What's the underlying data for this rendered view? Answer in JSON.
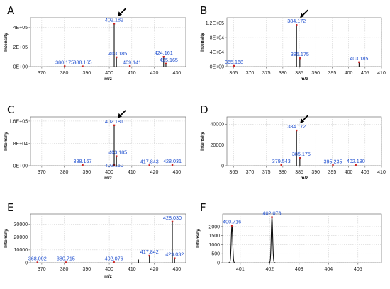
{
  "colors": {
    "peak": "#111111",
    "grid": "#c9c9c9",
    "axis": "#555555",
    "peak_label": "#1f4fcf",
    "marker": "#cc2222"
  },
  "chart_data": [
    {
      "panel": "A",
      "type": "bar",
      "xlabel": "m/z",
      "ylabel": "Intensity",
      "xlim": [
        365,
        434
      ],
      "ylim": [
        0,
        500000
      ],
      "xticks": [
        370,
        380,
        390,
        400,
        410,
        420,
        430
      ],
      "yticks": [
        0,
        200000,
        400000
      ],
      "ytick_labels": [
        "0E+00",
        "2E+05",
        "4E+05"
      ],
      "arrow_at": 402.182,
      "peaks": [
        {
          "mz": 380.175,
          "i": 4000,
          "label": "380.175"
        },
        {
          "mz": 388.165,
          "i": 3000,
          "label": "388.165"
        },
        {
          "mz": 402.182,
          "i": 440000,
          "label": "402.182"
        },
        {
          "mz": 403.185,
          "i": 95000,
          "label": "403.185"
        },
        {
          "mz": 409.141,
          "i": 5000,
          "label": "409.141"
        },
        {
          "mz": 424.161,
          "i": 100000,
          "label": "424.161"
        },
        {
          "mz": 425.165,
          "i": 30000,
          "label": "425.165"
        }
      ]
    },
    {
      "panel": "B",
      "type": "bar",
      "xlabel": "m/z",
      "ylabel": "Intensity",
      "xlim": [
        363,
        410
      ],
      "ylim": [
        0,
        135000
      ],
      "xticks": [
        365,
        370,
        375,
        380,
        385,
        390,
        395,
        400,
        405,
        410
      ],
      "yticks": [
        0,
        40000,
        80000,
        120000
      ],
      "ytick_labels": [
        "0E+00",
        "4E+04",
        "8E+04",
        "1.2E+05"
      ],
      "arrow_at": 384.172,
      "peaks": [
        {
          "mz": 365.168,
          "i": 2000,
          "label": "365.168"
        },
        {
          "mz": 384.172,
          "i": 115000,
          "label": "384.172"
        },
        {
          "mz": 385.175,
          "i": 23000,
          "label": "385.175"
        },
        {
          "mz": 403.185,
          "i": 12000,
          "label": "403.185"
        }
      ]
    },
    {
      "panel": "C",
      "type": "bar",
      "xlabel": "m/z",
      "ylabel": "Intensity",
      "xlim": [
        365,
        434
      ],
      "ylim": [
        0,
        175000
      ],
      "xticks": [
        370,
        380,
        390,
        400,
        410,
        420,
        430
      ],
      "yticks": [
        0,
        80000,
        160000
      ],
      "ytick_labels": [
        "0E+00",
        "8E+04",
        "1.6E+05"
      ],
      "arrow_at": 402.181,
      "peaks": [
        {
          "mz": 388.167,
          "i": 2000,
          "label": "388.167"
        },
        {
          "mz": 402.16,
          "i": 2500,
          "label": "402.160"
        },
        {
          "mz": 402.181,
          "i": 145000,
          "label": "402.181"
        },
        {
          "mz": 403.185,
          "i": 34000,
          "label": "403.185"
        },
        {
          "mz": 417.843,
          "i": 1500,
          "label": "417.843"
        },
        {
          "mz": 428.031,
          "i": 2000,
          "label": "428.031"
        }
      ]
    },
    {
      "panel": "D",
      "type": "bar",
      "xlabel": "m/z",
      "ylabel": "Intensity",
      "xlim": [
        363,
        410
      ],
      "ylim": [
        0,
        47000
      ],
      "xticks": [
        365,
        370,
        375,
        380,
        385,
        390,
        395,
        400,
        405,
        410
      ],
      "yticks": [
        0,
        20000,
        40000
      ],
      "ytick_labels": [
        "0",
        "20000",
        "40000"
      ],
      "arrow_at": 384.172,
      "peaks": [
        {
          "mz": 379.543,
          "i": 600,
          "label": "379.543"
        },
        {
          "mz": 384.172,
          "i": 34000,
          "label": "384.172"
        },
        {
          "mz": 385.175,
          "i": 7500,
          "label": "385.175"
        },
        {
          "mz": 395.235,
          "i": 500,
          "label": "395.235"
        },
        {
          "mz": 402.18,
          "i": 600,
          "label": "402.180"
        }
      ]
    },
    {
      "panel": "E",
      "type": "bar",
      "xlabel": "m/z",
      "ylabel": "Intensity",
      "xlim": [
        365,
        434
      ],
      "ylim": [
        0,
        38000
      ],
      "xticks": [
        370,
        380,
        390,
        400,
        410,
        420,
        430
      ],
      "yticks": [
        0,
        10000,
        20000,
        30000
      ],
      "ytick_labels": [
        "0",
        "10000",
        "20000",
        "30000"
      ],
      "arrow_at": null,
      "peaks": [
        {
          "mz": 368.092,
          "i": 300,
          "label": "368.092"
        },
        {
          "mz": 380.715,
          "i": 300,
          "label": "380.715"
        },
        {
          "mz": 402.076,
          "i": 400,
          "label": "402.076"
        },
        {
          "mz": 413.0,
          "i": 2500,
          "label": ""
        },
        {
          "mz": 417.842,
          "i": 5500,
          "label": "417.842"
        },
        {
          "mz": 428.03,
          "i": 32000,
          "label": "428.030"
        },
        {
          "mz": 429.032,
          "i": 3500,
          "label": "429.032"
        }
      ]
    },
    {
      "panel": "F",
      "type": "line",
      "xlabel": "",
      "ylabel": "Intensity",
      "xlim": [
        400.4,
        405.8
      ],
      "ylim": [
        0,
        2700
      ],
      "xticks": [
        401,
        402,
        403,
        404,
        405
      ],
      "yticks": [
        0,
        500,
        1000,
        1500,
        2000
      ],
      "ytick_labels": [
        "0",
        "500",
        "1000",
        "1500",
        "2000"
      ],
      "arrow_at": null,
      "peaks": [
        {
          "mz": 400.716,
          "i": 2050,
          "label": "400.716"
        },
        {
          "mz": 402.076,
          "i": 2520,
          "label": "402.076"
        }
      ]
    }
  ]
}
